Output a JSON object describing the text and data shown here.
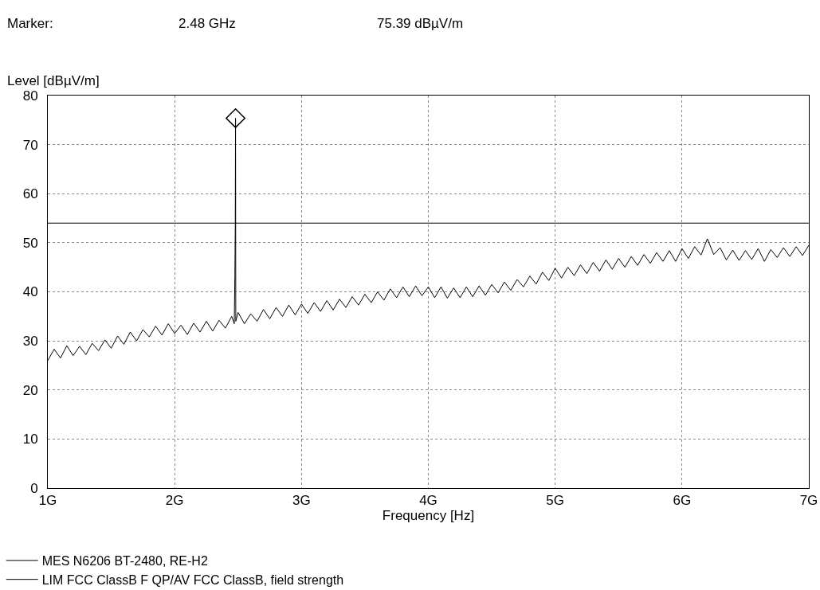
{
  "chart_data": {
    "type": "line",
    "annotations": [
      "Marker:",
      "2.48 GHz",
      "75.39 dBµV/m"
    ],
    "xlabel": "Frequency [Hz]",
    "ylabel": "Level [dBµV/m]",
    "xlim": [
      1,
      7
    ],
    "ylim": [
      0,
      80
    ],
    "xticks": [
      {
        "value": 1,
        "label": "1G"
      },
      {
        "value": 2,
        "label": "2G"
      },
      {
        "value": 3,
        "label": "3G"
      },
      {
        "value": 4,
        "label": "4G"
      },
      {
        "value": 5,
        "label": "5G"
      },
      {
        "value": 6,
        "label": "6G"
      },
      {
        "value": 7,
        "label": "7G"
      }
    ],
    "yticks": [
      0,
      10,
      20,
      30,
      40,
      50,
      60,
      70,
      80
    ],
    "grid": true,
    "legend": "bottom",
    "series": [
      {
        "name": "MES N6206 BT-2480, RE-H2",
        "color": "#000000",
        "marker": "none",
        "x": [
          1.0,
          1.05,
          1.1,
          1.15,
          1.2,
          1.25,
          1.3,
          1.35,
          1.4,
          1.45,
          1.5,
          1.55,
          1.6,
          1.65,
          1.7,
          1.75,
          1.8,
          1.85,
          1.9,
          1.95,
          2.0,
          2.05,
          2.1,
          2.15,
          2.2,
          2.25,
          2.3,
          2.35,
          2.4,
          2.45,
          2.47,
          2.475,
          2.478,
          2.48,
          2.482,
          2.5,
          2.55,
          2.6,
          2.65,
          2.7,
          2.75,
          2.8,
          2.85,
          2.9,
          2.95,
          3.0,
          3.05,
          3.1,
          3.15,
          3.2,
          3.25,
          3.3,
          3.35,
          3.4,
          3.45,
          3.5,
          3.55,
          3.6,
          3.65,
          3.7,
          3.75,
          3.8,
          3.85,
          3.9,
          3.95,
          4.0,
          4.05,
          4.1,
          4.15,
          4.2,
          4.25,
          4.3,
          4.35,
          4.4,
          4.45,
          4.5,
          4.55,
          4.6,
          4.65,
          4.7,
          4.75,
          4.8,
          4.85,
          4.9,
          4.95,
          5.0,
          5.05,
          5.1,
          5.15,
          5.2,
          5.25,
          5.3,
          5.35,
          5.4,
          5.45,
          5.5,
          5.55,
          5.6,
          5.65,
          5.7,
          5.75,
          5.8,
          5.85,
          5.9,
          5.95,
          6.0,
          6.05,
          6.1,
          6.15,
          6.2,
          6.25,
          6.3,
          6.35,
          6.4,
          6.45,
          6.5,
          6.55,
          6.6,
          6.65,
          6.7,
          6.75,
          6.8,
          6.85,
          6.9,
          6.95,
          7.0
        ],
        "values": [
          26.0,
          28.3,
          26.5,
          29.0,
          27.0,
          28.9,
          27.2,
          29.5,
          28.0,
          30.2,
          28.5,
          31.0,
          29.3,
          31.8,
          30.0,
          32.3,
          30.8,
          33.0,
          31.2,
          33.5,
          31.5,
          33.2,
          31.3,
          33.6,
          31.8,
          34.0,
          32.0,
          34.2,
          32.6,
          35.0,
          33.5,
          43.5,
          53.5,
          75.39,
          34.0,
          35.8,
          33.5,
          35.5,
          34.0,
          36.4,
          34.5,
          36.8,
          35.0,
          37.3,
          35.3,
          37.5,
          35.6,
          37.8,
          36.0,
          38.2,
          36.3,
          38.5,
          36.8,
          39.0,
          37.3,
          39.5,
          37.8,
          40.0,
          38.3,
          40.6,
          38.8,
          41.0,
          39.0,
          41.2,
          39.2,
          41.0,
          38.8,
          41.0,
          38.7,
          40.8,
          38.8,
          41.0,
          39.0,
          41.2,
          39.3,
          41.5,
          39.8,
          42.0,
          40.3,
          42.5,
          41.0,
          43.2,
          41.6,
          44.0,
          42.3,
          44.8,
          42.8,
          45.0,
          43.3,
          45.5,
          43.7,
          46.0,
          44.2,
          46.5,
          44.6,
          46.8,
          45.0,
          47.2,
          45.4,
          47.6,
          45.8,
          48.0,
          46.2,
          48.4,
          46.2,
          48.8,
          46.8,
          49.2,
          47.5,
          50.8,
          47.6,
          49.0,
          46.5,
          48.5,
          46.4,
          48.4,
          46.6,
          48.8,
          46.2,
          48.6,
          47.0,
          49.0,
          47.2,
          49.2,
          47.4,
          49.5
        ]
      },
      {
        "name": "LIM FCC ClassB F QP/AV FCC ClassB, field strength",
        "color": "#000000",
        "marker": "none",
        "x": [
          1,
          7
        ],
        "values": [
          54,
          54
        ]
      },
      {
        "color": "#000000",
        "type": "scatter",
        "marker": "diamond",
        "x": [
          2.48
        ],
        "values": [
          75.39
        ]
      }
    ]
  }
}
